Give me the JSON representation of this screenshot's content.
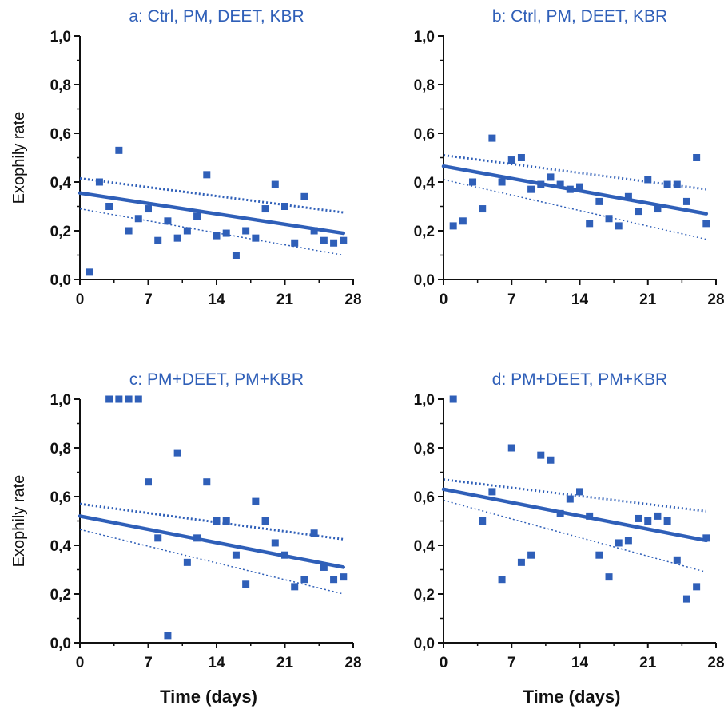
{
  "colors": {
    "accent": "#2f5fb8",
    "axis": "#111111"
  },
  "chart_data": [
    {
      "type": "scatter",
      "panel": "a",
      "title": "a: Ctrl, PM, DEET, KBR",
      "xlabel": "",
      "ylabel": "Exophily rate",
      "xlim": [
        0,
        28
      ],
      "ylim": [
        0,
        1
      ],
      "xticks": [
        "0",
        "7",
        "14",
        "21",
        "28"
      ],
      "yticks": [
        "0,0",
        "0,2",
        "0,4",
        "0,6",
        "0,8",
        "1,0"
      ],
      "points": [
        [
          1,
          0.03
        ],
        [
          2,
          0.4
        ],
        [
          3,
          0.3
        ],
        [
          4,
          0.53
        ],
        [
          5,
          0.2
        ],
        [
          6,
          0.25
        ],
        [
          7,
          0.29
        ],
        [
          8,
          0.16
        ],
        [
          9,
          0.24
        ],
        [
          10,
          0.17
        ],
        [
          11,
          0.2
        ],
        [
          12,
          0.26
        ],
        [
          13,
          0.43
        ],
        [
          14,
          0.18
        ],
        [
          15,
          0.19
        ],
        [
          16,
          0.1
        ],
        [
          17,
          0.2
        ],
        [
          18,
          0.17
        ],
        [
          19,
          0.29
        ],
        [
          20,
          0.39
        ],
        [
          21,
          0.3
        ],
        [
          22,
          0.15
        ],
        [
          23,
          0.34
        ],
        [
          24,
          0.2
        ],
        [
          25,
          0.16
        ],
        [
          26,
          0.15
        ],
        [
          27,
          0.16
        ]
      ],
      "fit": [
        [
          0,
          0.355
        ],
        [
          27,
          0.19
        ]
      ],
      "ci_upper": [
        [
          0,
          0.415
        ],
        [
          27,
          0.275
        ]
      ],
      "ci_lower": [
        [
          0,
          0.29
        ],
        [
          27,
          0.1
        ]
      ]
    },
    {
      "type": "scatter",
      "panel": "b",
      "title": "b: Ctrl, PM, DEET, KBR",
      "xlabel": "",
      "ylabel": "",
      "xlim": [
        0,
        28
      ],
      "ylim": [
        0,
        1
      ],
      "xticks": [
        "0",
        "7",
        "14",
        "21",
        "28"
      ],
      "yticks": [
        "0,0",
        "0,2",
        "0,4",
        "0,6",
        "0,8",
        "1,0"
      ],
      "points": [
        [
          1,
          0.22
        ],
        [
          2,
          0.24
        ],
        [
          3,
          0.4
        ],
        [
          4,
          0.29
        ],
        [
          5,
          0.58
        ],
        [
          6,
          0.4
        ],
        [
          7,
          0.49
        ],
        [
          8,
          0.5
        ],
        [
          9,
          0.37
        ],
        [
          10,
          0.39
        ],
        [
          11,
          0.42
        ],
        [
          12,
          0.39
        ],
        [
          13,
          0.37
        ],
        [
          14,
          0.38
        ],
        [
          15,
          0.23
        ],
        [
          16,
          0.32
        ],
        [
          17,
          0.25
        ],
        [
          18,
          0.22
        ],
        [
          19,
          0.34
        ],
        [
          20,
          0.28
        ],
        [
          21,
          0.41
        ],
        [
          22,
          0.29
        ],
        [
          23,
          0.39
        ],
        [
          24,
          0.39
        ],
        [
          25,
          0.32
        ],
        [
          26,
          0.5
        ],
        [
          27,
          0.23
        ]
      ],
      "fit": [
        [
          0,
          0.465
        ],
        [
          27,
          0.27
        ]
      ],
      "ci_upper": [
        [
          0,
          0.51
        ],
        [
          27,
          0.37
        ]
      ],
      "ci_lower": [
        [
          0,
          0.41
        ],
        [
          27,
          0.165
        ]
      ]
    },
    {
      "type": "scatter",
      "panel": "c",
      "title": "c: PM+DEET, PM+KBR",
      "xlabel": "Time (days)",
      "ylabel": "Exophily rate",
      "xlim": [
        0,
        28
      ],
      "ylim": [
        0,
        1
      ],
      "xticks": [
        "0",
        "7",
        "14",
        "21",
        "28"
      ],
      "yticks": [
        "0,0",
        "0,2",
        "0,4",
        "0,6",
        "0,8",
        "1,0"
      ],
      "points": [
        [
          3,
          1.0
        ],
        [
          4,
          1.0
        ],
        [
          5,
          1.0
        ],
        [
          6,
          1.0
        ],
        [
          7,
          0.66
        ],
        [
          8,
          0.43
        ],
        [
          9,
          0.03
        ],
        [
          10,
          0.78
        ],
        [
          11,
          0.33
        ],
        [
          12,
          0.43
        ],
        [
          13,
          0.66
        ],
        [
          14,
          0.5
        ],
        [
          15,
          0.5
        ],
        [
          16,
          0.36
        ],
        [
          17,
          0.24
        ],
        [
          18,
          0.58
        ],
        [
          19,
          0.5
        ],
        [
          20,
          0.41
        ],
        [
          21,
          0.36
        ],
        [
          22,
          0.23
        ],
        [
          23,
          0.26
        ],
        [
          24,
          0.45
        ],
        [
          25,
          0.31
        ],
        [
          26,
          0.26
        ],
        [
          27,
          0.27
        ]
      ],
      "fit": [
        [
          0,
          0.52
        ],
        [
          27,
          0.31
        ]
      ],
      "ci_upper": [
        [
          0,
          0.57
        ],
        [
          27,
          0.425
        ]
      ],
      "ci_lower": [
        [
          0,
          0.465
        ],
        [
          27,
          0.2
        ]
      ]
    },
    {
      "type": "scatter",
      "panel": "d",
      "title": "d: PM+DEET, PM+KBR",
      "xlabel": "Time (days)",
      "ylabel": "",
      "xlim": [
        0,
        28
      ],
      "ylim": [
        0,
        1
      ],
      "xticks": [
        "0",
        "7",
        "14",
        "21",
        "28"
      ],
      "yticks": [
        "0,0",
        "0,2",
        "0,4",
        "0,6",
        "0,8",
        "1,0"
      ],
      "points": [
        [
          1,
          1.0
        ],
        [
          4,
          0.5
        ],
        [
          5,
          0.62
        ],
        [
          6,
          0.26
        ],
        [
          7,
          0.8
        ],
        [
          8,
          0.33
        ],
        [
          9,
          0.36
        ],
        [
          10,
          0.77
        ],
        [
          11,
          0.75
        ],
        [
          12,
          0.53
        ],
        [
          13,
          0.59
        ],
        [
          14,
          0.62
        ],
        [
          15,
          0.52
        ],
        [
          16,
          0.36
        ],
        [
          17,
          0.27
        ],
        [
          18,
          0.41
        ],
        [
          19,
          0.42
        ],
        [
          20,
          0.51
        ],
        [
          21,
          0.5
        ],
        [
          22,
          0.52
        ],
        [
          23,
          0.5
        ],
        [
          24,
          0.34
        ],
        [
          25,
          0.18
        ],
        [
          26,
          0.23
        ],
        [
          27,
          0.43
        ]
      ],
      "fit": [
        [
          0,
          0.63
        ],
        [
          27,
          0.42
        ]
      ],
      "ci_upper": [
        [
          0,
          0.67
        ],
        [
          27,
          0.54
        ]
      ],
      "ci_lower": [
        [
          0,
          0.585
        ],
        [
          27,
          0.29
        ]
      ]
    }
  ]
}
